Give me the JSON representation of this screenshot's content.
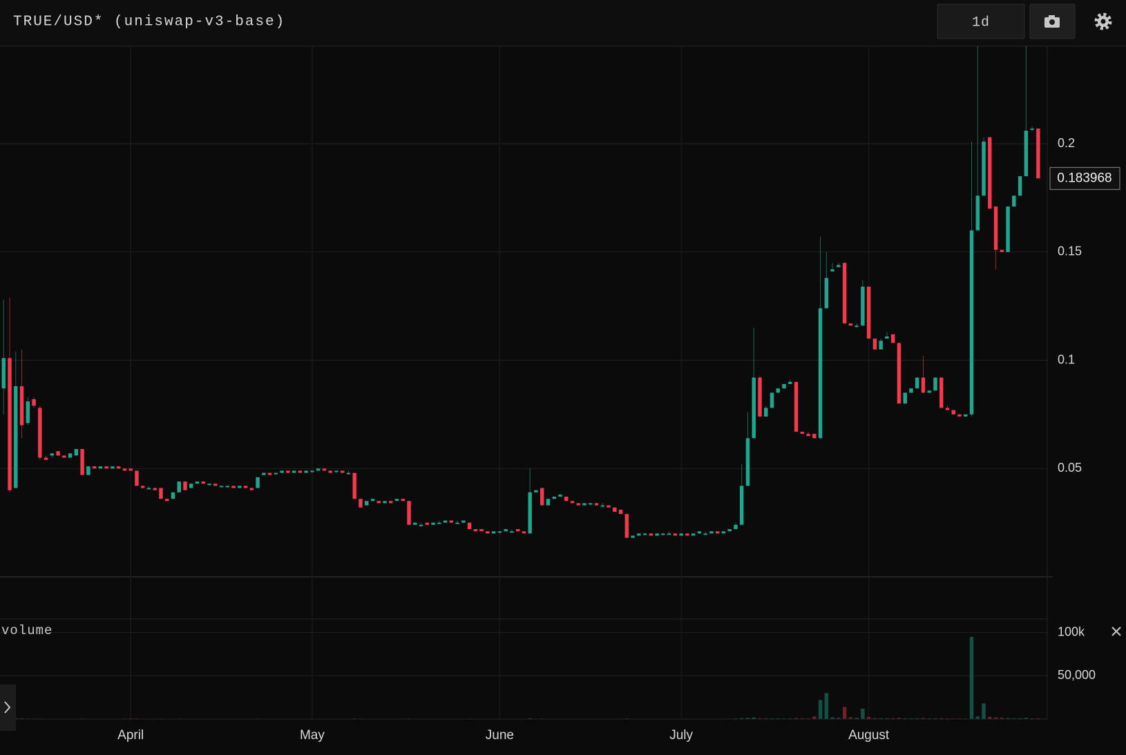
{
  "chart_data": {
    "type": "candlestick",
    "title": "TRUE/USD* (uniswap-v3-base)",
    "interval": "1d",
    "up_color": "#22a58f",
    "down_color": "#f23a4c",
    "grid": true,
    "xlim": [
      -0.6,
      172.5
    ],
    "xticks": [
      {
        "value": 21,
        "label": "April"
      },
      {
        "value": 51,
        "label": "May"
      },
      {
        "value": 82,
        "label": "June"
      },
      {
        "value": 112,
        "label": "July"
      },
      {
        "value": 143,
        "label": "August"
      }
    ],
    "ylim": [
      0,
      0.245
    ],
    "yticks": [
      0.05,
      0.1,
      0.15,
      0.2
    ],
    "last_price": 0.183968,
    "x": [
      0,
      1,
      2,
      3,
      4,
      5,
      6,
      7,
      8,
      9,
      10,
      11,
      12,
      13,
      14,
      15,
      16,
      17,
      18,
      19,
      20,
      21,
      22,
      23,
      24,
      25,
      26,
      27,
      28,
      29,
      30,
      31,
      32,
      33,
      34,
      35,
      36,
      37,
      38,
      39,
      40,
      41,
      42,
      43,
      44,
      45,
      46,
      47,
      48,
      49,
      50,
      51,
      52,
      53,
      54,
      55,
      56,
      57,
      58,
      59,
      60,
      61,
      62,
      63,
      64,
      65,
      66,
      67,
      68,
      69,
      70,
      71,
      72,
      73,
      74,
      75,
      76,
      77,
      78,
      79,
      80,
      81,
      82,
      83,
      84,
      85,
      86,
      87,
      88,
      89,
      90,
      91,
      92,
      93,
      94,
      95,
      96,
      97,
      98,
      99,
      100,
      101,
      102,
      103,
      104,
      105,
      106,
      107,
      108,
      109,
      110,
      111,
      112,
      113,
      114,
      115,
      116,
      117,
      118,
      119,
      120,
      121,
      122,
      123,
      124,
      125,
      126,
      127,
      128,
      129,
      130,
      131,
      132,
      133,
      134,
      135,
      136,
      137,
      138,
      139,
      140,
      141,
      142,
      143,
      144,
      145,
      146,
      147,
      148,
      149,
      150,
      151,
      152,
      153,
      154,
      155,
      156,
      157,
      158,
      159,
      160,
      161,
      162,
      163,
      164,
      165,
      166,
      167,
      168,
      169,
      170,
      171
    ],
    "ohlc": [
      [
        0.087,
        0.128,
        0.075,
        0.101
      ],
      [
        0.101,
        0.129,
        0.039,
        0.04
      ],
      [
        0.041,
        0.104,
        0.041,
        0.088
      ],
      [
        0.088,
        0.105,
        0.064,
        0.07
      ],
      [
        0.071,
        0.083,
        0.07,
        0.081
      ],
      [
        0.082,
        0.083,
        0.078,
        0.079
      ],
      [
        0.078,
        0.079,
        0.054,
        0.055
      ],
      [
        0.055,
        0.056,
        0.054,
        0.054
      ],
      [
        0.056,
        0.057,
        0.055,
        0.057
      ],
      [
        0.058,
        0.058,
        0.056,
        0.056
      ],
      [
        0.056,
        0.056,
        0.055,
        0.055
      ],
      [
        0.055,
        0.057,
        0.055,
        0.057
      ],
      [
        0.056,
        0.059,
        0.056,
        0.059
      ],
      [
        0.059,
        0.059,
        0.047,
        0.047
      ],
      [
        0.047,
        0.051,
        0.047,
        0.051
      ],
      [
        0.051,
        0.051,
        0.05,
        0.05
      ],
      [
        0.05,
        0.051,
        0.05,
        0.051
      ],
      [
        0.051,
        0.051,
        0.05,
        0.05
      ],
      [
        0.05,
        0.051,
        0.05,
        0.051
      ],
      [
        0.051,
        0.051,
        0.05,
        0.05
      ],
      [
        0.05,
        0.05,
        0.049,
        0.049
      ],
      [
        0.05,
        0.05,
        0.049,
        0.049
      ],
      [
        0.049,
        0.049,
        0.042,
        0.042
      ],
      [
        0.042,
        0.042,
        0.041,
        0.041
      ],
      [
        0.041,
        0.042,
        0.041,
        0.041
      ],
      [
        0.041,
        0.041,
        0.04,
        0.04
      ],
      [
        0.041,
        0.041,
        0.036,
        0.036
      ],
      [
        0.036,
        0.036,
        0.035,
        0.035
      ],
      [
        0.036,
        0.039,
        0.036,
        0.039
      ],
      [
        0.039,
        0.044,
        0.039,
        0.044
      ],
      [
        0.044,
        0.044,
        0.04,
        0.04
      ],
      [
        0.041,
        0.043,
        0.041,
        0.043
      ],
      [
        0.043,
        0.044,
        0.043,
        0.044
      ],
      [
        0.044,
        0.044,
        0.043,
        0.043
      ],
      [
        0.043,
        0.043,
        0.042,
        0.043
      ],
      [
        0.043,
        0.043,
        0.042,
        0.042
      ],
      [
        0.042,
        0.042,
        0.042,
        0.042
      ],
      [
        0.042,
        0.042,
        0.041,
        0.042
      ],
      [
        0.042,
        0.042,
        0.041,
        0.041
      ],
      [
        0.041,
        0.042,
        0.041,
        0.042
      ],
      [
        0.042,
        0.042,
        0.041,
        0.041
      ],
      [
        0.041,
        0.041,
        0.04,
        0.04
      ],
      [
        0.041,
        0.046,
        0.041,
        0.046
      ],
      [
        0.047,
        0.048,
        0.047,
        0.048
      ],
      [
        0.048,
        0.048,
        0.047,
        0.047
      ],
      [
        0.048,
        0.048,
        0.047,
        0.048
      ],
      [
        0.048,
        0.049,
        0.048,
        0.049
      ],
      [
        0.049,
        0.049,
        0.048,
        0.048
      ],
      [
        0.048,
        0.049,
        0.048,
        0.049
      ],
      [
        0.049,
        0.049,
        0.048,
        0.048
      ],
      [
        0.048,
        0.049,
        0.048,
        0.049
      ],
      [
        0.049,
        0.049,
        0.048,
        0.049
      ],
      [
        0.049,
        0.05,
        0.049,
        0.05
      ],
      [
        0.05,
        0.05,
        0.049,
        0.049
      ],
      [
        0.049,
        0.049,
        0.048,
        0.048
      ],
      [
        0.049,
        0.049,
        0.048,
        0.049
      ],
      [
        0.049,
        0.049,
        0.048,
        0.048
      ],
      [
        0.048,
        0.049,
        0.048,
        0.048
      ],
      [
        0.048,
        0.048,
        0.036,
        0.036
      ],
      [
        0.036,
        0.036,
        0.032,
        0.032
      ],
      [
        0.033,
        0.035,
        0.033,
        0.035
      ],
      [
        0.035,
        0.036,
        0.035,
        0.036
      ],
      [
        0.035,
        0.035,
        0.034,
        0.034
      ],
      [
        0.034,
        0.035,
        0.034,
        0.035
      ],
      [
        0.035,
        0.035,
        0.034,
        0.034
      ],
      [
        0.035,
        0.036,
        0.035,
        0.036
      ],
      [
        0.036,
        0.036,
        0.035,
        0.035
      ],
      [
        0.035,
        0.035,
        0.024,
        0.024
      ],
      [
        0.024,
        0.025,
        0.024,
        0.025
      ],
      [
        0.024,
        0.025,
        0.024,
        0.024
      ],
      [
        0.025,
        0.025,
        0.024,
        0.024
      ],
      [
        0.024,
        0.025,
        0.024,
        0.025
      ],
      [
        0.025,
        0.026,
        0.025,
        0.025
      ],
      [
        0.025,
        0.026,
        0.025,
        0.026
      ],
      [
        0.026,
        0.026,
        0.025,
        0.025
      ],
      [
        0.025,
        0.026,
        0.025,
        0.025
      ],
      [
        0.025,
        0.026,
        0.025,
        0.026
      ],
      [
        0.025,
        0.025,
        0.022,
        0.022
      ],
      [
        0.022,
        0.022,
        0.021,
        0.021
      ],
      [
        0.022,
        0.022,
        0.021,
        0.021
      ],
      [
        0.021,
        0.021,
        0.02,
        0.02
      ],
      [
        0.02,
        0.021,
        0.02,
        0.021
      ],
      [
        0.021,
        0.021,
        0.02,
        0.021
      ],
      [
        0.021,
        0.022,
        0.021,
        0.022
      ],
      [
        0.021,
        0.022,
        0.021,
        0.021
      ],
      [
        0.022,
        0.022,
        0.021,
        0.021
      ],
      [
        0.021,
        0.021,
        0.02,
        0.02
      ],
      [
        0.02,
        0.05,
        0.02,
        0.039
      ],
      [
        0.039,
        0.04,
        0.039,
        0.04
      ],
      [
        0.041,
        0.041,
        0.033,
        0.033
      ],
      [
        0.033,
        0.036,
        0.033,
        0.036
      ],
      [
        0.036,
        0.037,
        0.036,
        0.037
      ],
      [
        0.037,
        0.038,
        0.037,
        0.038
      ],
      [
        0.037,
        0.037,
        0.035,
        0.035
      ],
      [
        0.035,
        0.035,
        0.034,
        0.034
      ],
      [
        0.034,
        0.034,
        0.033,
        0.033
      ],
      [
        0.033,
        0.034,
        0.033,
        0.034
      ],
      [
        0.034,
        0.034,
        0.033,
        0.034
      ],
      [
        0.034,
        0.034,
        0.033,
        0.033
      ],
      [
        0.033,
        0.034,
        0.033,
        0.033
      ],
      [
        0.033,
        0.033,
        0.032,
        0.032
      ],
      [
        0.032,
        0.032,
        0.03,
        0.03
      ],
      [
        0.031,
        0.031,
        0.029,
        0.029
      ],
      [
        0.029,
        0.029,
        0.018,
        0.018
      ],
      [
        0.018,
        0.019,
        0.018,
        0.019
      ],
      [
        0.019,
        0.02,
        0.019,
        0.02
      ],
      [
        0.02,
        0.02,
        0.019,
        0.02
      ],
      [
        0.02,
        0.02,
        0.019,
        0.019
      ],
      [
        0.019,
        0.02,
        0.019,
        0.02
      ],
      [
        0.02,
        0.02,
        0.019,
        0.02
      ],
      [
        0.02,
        0.021,
        0.02,
        0.02
      ],
      [
        0.02,
        0.02,
        0.019,
        0.019
      ],
      [
        0.019,
        0.02,
        0.019,
        0.02
      ],
      [
        0.02,
        0.02,
        0.019,
        0.019
      ],
      [
        0.019,
        0.02,
        0.019,
        0.02
      ],
      [
        0.02,
        0.021,
        0.02,
        0.021
      ],
      [
        0.02,
        0.021,
        0.02,
        0.02
      ],
      [
        0.02,
        0.021,
        0.02,
        0.021
      ],
      [
        0.021,
        0.021,
        0.02,
        0.02
      ],
      [
        0.02,
        0.021,
        0.02,
        0.021
      ],
      [
        0.021,
        0.022,
        0.021,
        0.022
      ],
      [
        0.022,
        0.025,
        0.022,
        0.024
      ],
      [
        0.024,
        0.052,
        0.024,
        0.042
      ],
      [
        0.042,
        0.076,
        0.042,
        0.064
      ],
      [
        0.064,
        0.115,
        0.064,
        0.092
      ],
      [
        0.092,
        0.093,
        0.074,
        0.074
      ],
      [
        0.074,
        0.079,
        0.074,
        0.078
      ],
      [
        0.078,
        0.085,
        0.078,
        0.085
      ],
      [
        0.085,
        0.087,
        0.085,
        0.087
      ],
      [
        0.087,
        0.089,
        0.087,
        0.089
      ],
      [
        0.089,
        0.091,
        0.089,
        0.09
      ],
      [
        0.09,
        0.09,
        0.067,
        0.067
      ],
      [
        0.067,
        0.067,
        0.066,
        0.066
      ],
      [
        0.066,
        0.067,
        0.065,
        0.065
      ],
      [
        0.066,
        0.066,
        0.064,
        0.064
      ],
      [
        0.064,
        0.157,
        0.064,
        0.124
      ],
      [
        0.124,
        0.15,
        0.124,
        0.138
      ],
      [
        0.141,
        0.145,
        0.141,
        0.142
      ],
      [
        0.143,
        0.145,
        0.143,
        0.144
      ],
      [
        0.145,
        0.145,
        0.117,
        0.117
      ],
      [
        0.117,
        0.117,
        0.116,
        0.116
      ],
      [
        0.116,
        0.117,
        0.115,
        0.116
      ],
      [
        0.116,
        0.137,
        0.116,
        0.134
      ],
      [
        0.134,
        0.134,
        0.11,
        0.11
      ],
      [
        0.11,
        0.11,
        0.105,
        0.105
      ],
      [
        0.105,
        0.11,
        0.105,
        0.109
      ],
      [
        0.11,
        0.113,
        0.11,
        0.111
      ],
      [
        0.112,
        0.112,
        0.108,
        0.108
      ],
      [
        0.108,
        0.108,
        0.08,
        0.08
      ],
      [
        0.08,
        0.085,
        0.08,
        0.085
      ],
      [
        0.085,
        0.087,
        0.085,
        0.087
      ],
      [
        0.087,
        0.092,
        0.087,
        0.092
      ],
      [
        0.092,
        0.102,
        0.085,
        0.085
      ],
      [
        0.085,
        0.086,
        0.085,
        0.086
      ],
      [
        0.086,
        0.092,
        0.086,
        0.092
      ],
      [
        0.092,
        0.092,
        0.078,
        0.078
      ],
      [
        0.078,
        0.079,
        0.077,
        0.077
      ],
      [
        0.077,
        0.077,
        0.075,
        0.075
      ],
      [
        0.075,
        0.075,
        0.074,
        0.074
      ],
      [
        0.074,
        0.075,
        0.074,
        0.075
      ],
      [
        0.075,
        0.201,
        0.074,
        0.16
      ],
      [
        0.16,
        0.245,
        0.16,
        0.176
      ],
      [
        0.176,
        0.203,
        0.176,
        0.201
      ],
      [
        0.203,
        0.203,
        0.17,
        0.17
      ],
      [
        0.171,
        0.171,
        0.142,
        0.151
      ],
      [
        0.151,
        0.151,
        0.15,
        0.15
      ],
      [
        0.15,
        0.171,
        0.15,
        0.171
      ],
      [
        0.171,
        0.176,
        0.171,
        0.176
      ],
      [
        0.176,
        0.185,
        0.176,
        0.185
      ],
      [
        0.185,
        0.245,
        0.185,
        0.206
      ],
      [
        0.207,
        0.208,
        0.206,
        0.207
      ],
      [
        0.207,
        0.207,
        0.184,
        0.184
      ]
    ],
    "volume": {
      "label": "volume",
      "ylim": [
        0,
        115000
      ],
      "yticks": [
        {
          "value": 100000,
          "label": "100k"
        },
        {
          "value": 50000,
          "label": "50,000"
        }
      ],
      "values": [
        1500,
        1200,
        1000,
        800,
        600,
        500,
        500,
        400,
        400,
        400,
        400,
        400,
        400,
        600,
        400,
        400,
        400,
        400,
        400,
        400,
        600,
        800,
        700,
        400,
        400,
        400,
        500,
        400,
        400,
        500,
        400,
        400,
        400,
        400,
        400,
        400,
        400,
        400,
        400,
        400,
        400,
        400,
        500,
        400,
        400,
        400,
        400,
        400,
        400,
        400,
        400,
        400,
        400,
        400,
        400,
        400,
        400,
        400,
        800,
        500,
        400,
        400,
        400,
        400,
        400,
        400,
        400,
        600,
        400,
        400,
        400,
        400,
        400,
        400,
        400,
        400,
        400,
        500,
        400,
        400,
        400,
        400,
        400,
        400,
        400,
        400,
        400,
        900,
        500,
        600,
        400,
        400,
        400,
        400,
        400,
        400,
        400,
        400,
        400,
        400,
        400,
        400,
        400,
        700,
        400,
        400,
        400,
        400,
        400,
        400,
        400,
        400,
        400,
        400,
        400,
        400,
        400,
        400,
        400,
        400,
        500,
        800,
        1200,
        1500,
        1800,
        1000,
        900,
        800,
        800,
        700,
        700,
        1200,
        900,
        800,
        3000,
        22000,
        30000,
        2000,
        1500,
        14000,
        2000,
        1500,
        12000,
        2500,
        1200,
        1000,
        1100,
        1000,
        1500,
        900,
        800,
        900,
        1200,
        800,
        900,
        1000,
        800,
        700,
        700,
        600,
        95000,
        3000,
        18000,
        2500,
        2000,
        1500,
        1200,
        1000,
        1000,
        1500,
        800,
        900
      ]
    }
  }
}
